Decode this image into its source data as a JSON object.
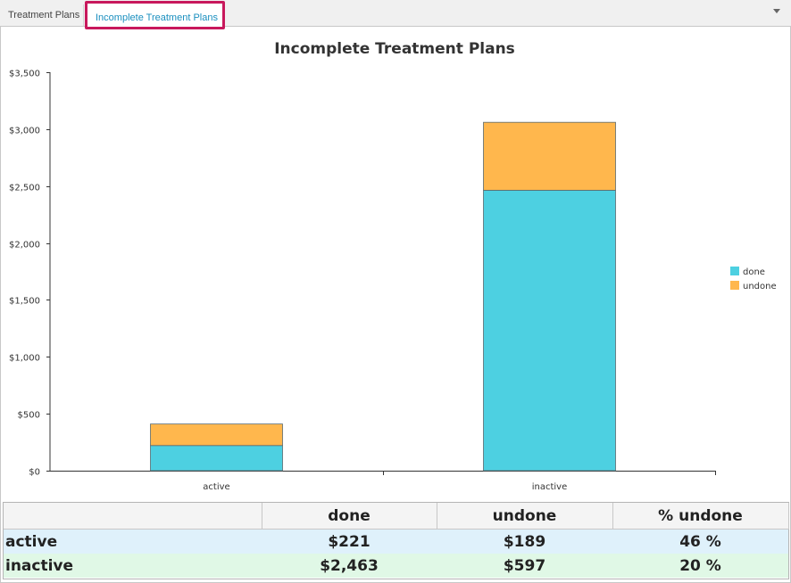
{
  "tabs": [
    {
      "label": "Treatment Plans"
    },
    {
      "label": "Incomplete Treatment Plans"
    }
  ],
  "colors": {
    "done": "#4dd0e1",
    "undone": "#ffb74d",
    "tab_highlight": "#c8185c",
    "active_tab_text": "#1a8fbf"
  },
  "chart_data": {
    "type": "bar",
    "stacked": true,
    "title": "Incomplete Treatment Plans",
    "categories": [
      "active",
      "inactive"
    ],
    "series": [
      {
        "name": "done",
        "values": [
          221,
          2463
        ],
        "color": "#4dd0e1"
      },
      {
        "name": "undone",
        "values": [
          189,
          597
        ],
        "color": "#ffb74d"
      }
    ],
    "ylim": [
      0,
      3500
    ],
    "yticks": [
      0,
      500,
      1000,
      1500,
      2000,
      2500,
      3000,
      3500
    ],
    "ytick_labels": [
      "$0",
      "$500",
      "$1,000",
      "$1,500",
      "$2,000",
      "$2,500",
      "$3,000",
      "$3,500"
    ],
    "xlabel": "",
    "ylabel": "",
    "grid": false,
    "legend_position": "right"
  },
  "table": {
    "headers": [
      "",
      "done",
      "undone",
      "% undone"
    ],
    "rows": [
      {
        "label": "active",
        "done": "$221",
        "undone": "$189",
        "pct": "46 %"
      },
      {
        "label": "inactive",
        "done": "$2,463",
        "undone": "$597",
        "pct": "20 %"
      }
    ]
  }
}
